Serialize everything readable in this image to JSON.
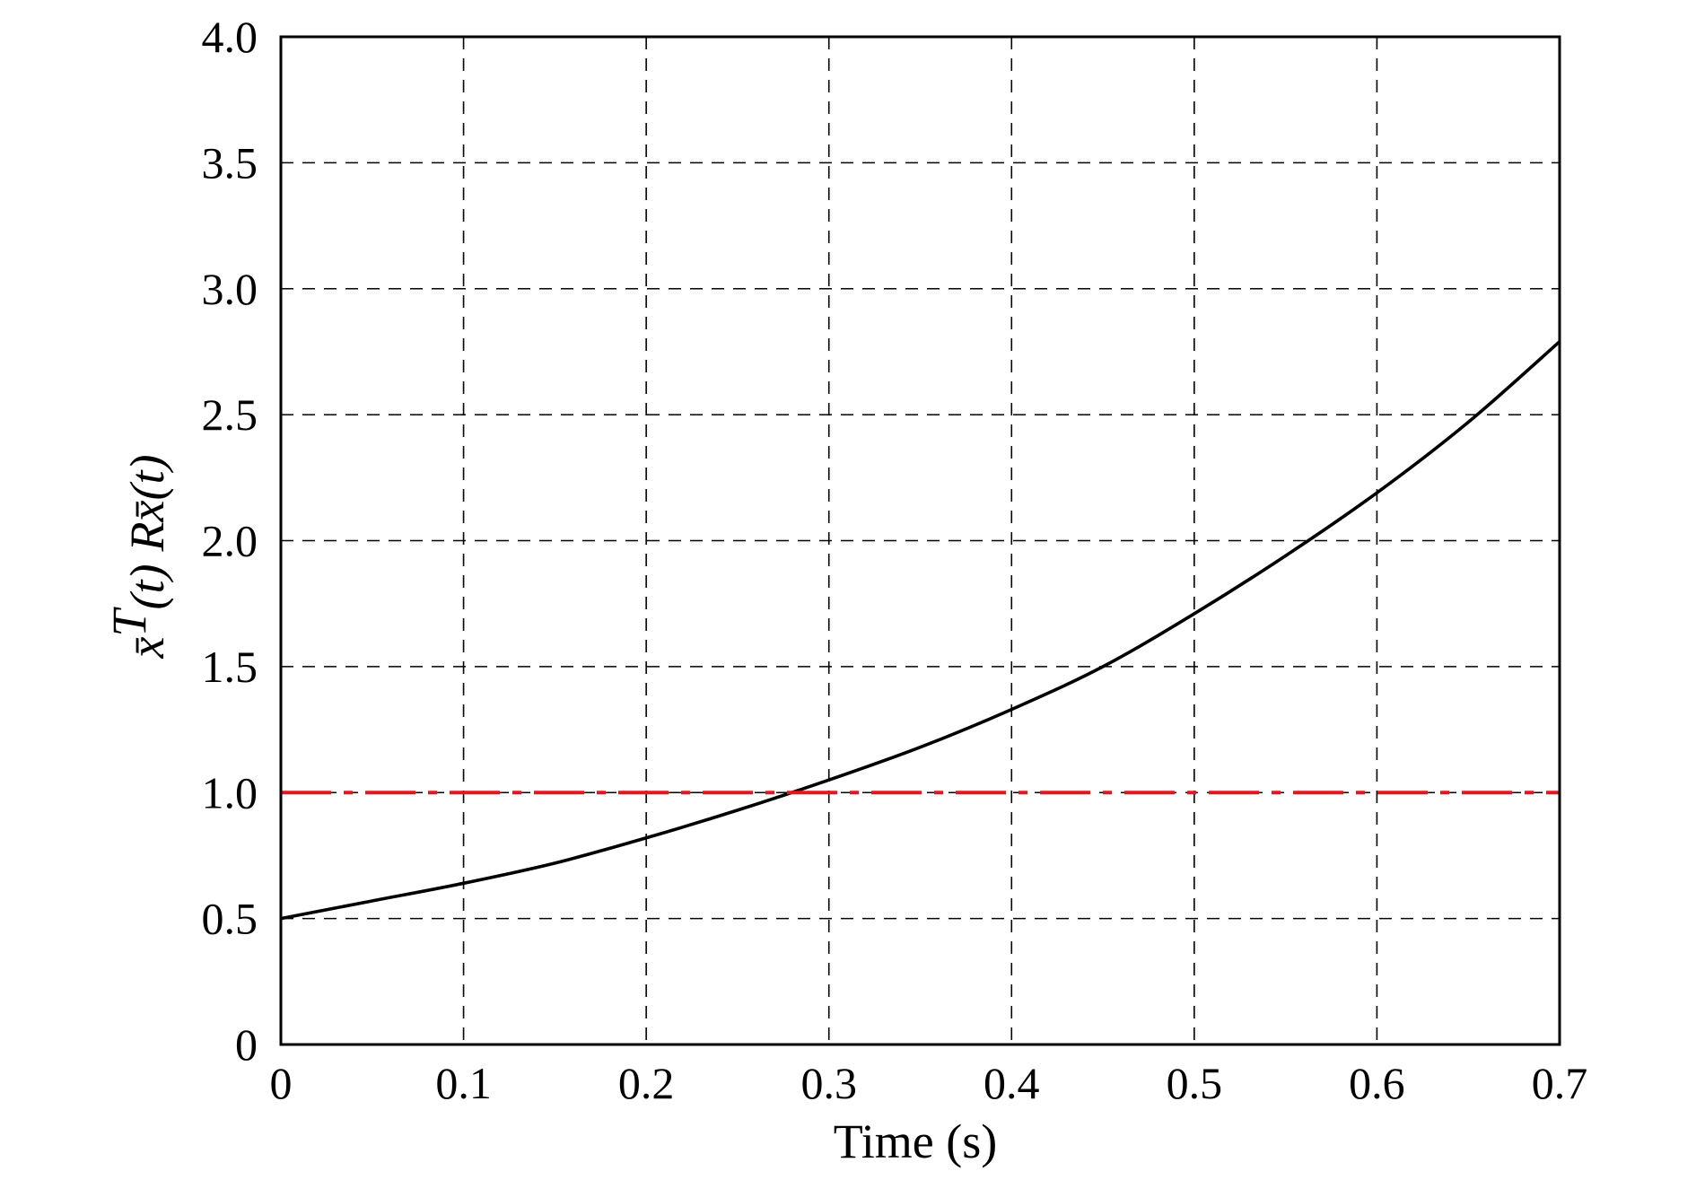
{
  "chart_data": {
    "type": "line",
    "title": "",
    "xlabel": "Time (s)",
    "ylabel": "x̄ᵀ(t) Rx̄(t)",
    "ylabel_parts": {
      "sym1": "x̄",
      "sup": "T",
      "arg1": "(t)",
      "mid": "R",
      "sym2": "x̄",
      "arg2": "(t)"
    },
    "xlim": [
      0,
      0.7
    ],
    "ylim": [
      0,
      4.0
    ],
    "xticks": [
      0,
      0.1,
      0.2,
      0.3,
      0.4,
      0.5,
      0.6,
      0.7
    ],
    "xtick_labels": [
      "0",
      "0.1",
      "0.2",
      "0.3",
      "0.4",
      "0.5",
      "0.6",
      "0.7"
    ],
    "yticks": [
      0,
      0.5,
      1.0,
      1.5,
      2.0,
      2.5,
      3.0,
      3.5,
      4.0
    ],
    "ytick_labels": [
      "0",
      "0.5",
      "1.0",
      "1.5",
      "2.0",
      "2.5",
      "3.0",
      "3.5",
      "4.0"
    ],
    "grid": true,
    "series": [
      {
        "color": "#000000",
        "style": "solid",
        "x": [
          0,
          0.05,
          0.1,
          0.15,
          0.2,
          0.25,
          0.3,
          0.35,
          0.4,
          0.45,
          0.5,
          0.55,
          0.6,
          0.65,
          0.7
        ],
        "y": [
          0.5,
          0.57,
          0.64,
          0.72,
          0.82,
          0.93,
          1.05,
          1.18,
          1.33,
          1.5,
          1.71,
          1.94,
          2.19,
          2.47,
          2.79
        ]
      },
      {
        "color": "#e8141e",
        "style": "dashdot",
        "x": [
          0,
          0.7
        ],
        "y": [
          1.0,
          1.0
        ]
      }
    ]
  }
}
